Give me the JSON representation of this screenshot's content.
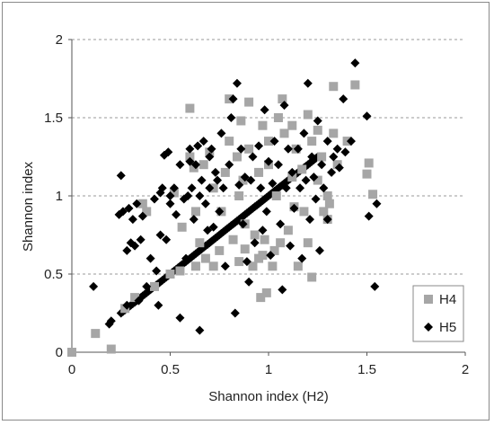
{
  "chart_data": {
    "type": "scatter",
    "title": "",
    "xlabel": "Shannon index (H2)",
    "ylabel": "Shannon index",
    "xlim": [
      0,
      2
    ],
    "ylim": [
      0,
      2
    ],
    "x_ticks": [
      "0",
      "0.5",
      "1",
      "1.5",
      "2"
    ],
    "y_ticks": [
      "0",
      "0.5",
      "1",
      "1.5",
      "2"
    ],
    "grid": "horizontal dashed",
    "legend_placement": "bottom-right",
    "series": [
      {
        "name": "H4",
        "marker": "square",
        "color": "#a6a6a6",
        "points": [
          [
            0.0,
            0.0
          ],
          [
            0.12,
            0.12
          ],
          [
            0.2,
            0.02
          ],
          [
            0.27,
            0.28
          ],
          [
            0.32,
            0.35
          ],
          [
            0.36,
            0.95
          ],
          [
            0.38,
            0.9
          ],
          [
            0.42,
            0.42
          ],
          [
            0.5,
            0.5
          ],
          [
            0.52,
            1.02
          ],
          [
            0.55,
            0.52
          ],
          [
            0.56,
            0.8
          ],
          [
            0.6,
            1.56
          ],
          [
            0.6,
            1.25
          ],
          [
            0.62,
            1.18
          ],
          [
            0.63,
            0.9
          ],
          [
            0.63,
            0.55
          ],
          [
            0.65,
            0.7
          ],
          [
            0.67,
            1.2
          ],
          [
            0.68,
            0.6
          ],
          [
            0.7,
            1.28
          ],
          [
            0.72,
            0.55
          ],
          [
            0.72,
            1.05
          ],
          [
            0.75,
            0.65
          ],
          [
            0.76,
            0.9
          ],
          [
            0.78,
            1.15
          ],
          [
            0.8,
            1.35
          ],
          [
            0.8,
            1.62
          ],
          [
            0.82,
            0.72
          ],
          [
            0.84,
            1.25
          ],
          [
            0.85,
            0.58
          ],
          [
            0.85,
            1.0
          ],
          [
            0.86,
            1.48
          ],
          [
            0.87,
            1.1
          ],
          [
            0.88,
            0.66
          ],
          [
            0.88,
            0.82
          ],
          [
            0.9,
            1.6
          ],
          [
            0.9,
            1.3
          ],
          [
            0.92,
            0.55
          ],
          [
            0.93,
            0.75
          ],
          [
            0.95,
            1.15
          ],
          [
            0.95,
            0.6
          ],
          [
            0.96,
            0.35
          ],
          [
            0.97,
            1.45
          ],
          [
            0.97,
            0.62
          ],
          [
            0.98,
            0.72
          ],
          [
            0.99,
            0.38
          ],
          [
            1.0,
            1.35
          ],
          [
            1.0,
            1.2
          ],
          [
            1.02,
            0.55
          ],
          [
            1.03,
            0.65
          ],
          [
            1.04,
            1.0
          ],
          [
            1.05,
            1.5
          ],
          [
            1.06,
            0.7
          ],
          [
            1.07,
            1.62
          ],
          [
            1.08,
            1.4
          ],
          [
            1.1,
            0.78
          ],
          [
            1.12,
            1.45
          ],
          [
            1.12,
            1.12
          ],
          [
            1.13,
            0.93
          ],
          [
            1.14,
            1.3
          ],
          [
            1.15,
            0.55
          ],
          [
            1.17,
            1.17
          ],
          [
            1.18,
            0.9
          ],
          [
            1.2,
            0.7
          ],
          [
            1.2,
            1.52
          ],
          [
            1.22,
            1.35
          ],
          [
            1.22,
            0.48
          ],
          [
            1.25,
            1.42
          ],
          [
            1.25,
            1.1
          ],
          [
            1.27,
            1.25
          ],
          [
            1.28,
            0.9
          ],
          [
            1.3,
            1.0
          ],
          [
            1.3,
            0.85
          ],
          [
            1.31,
            0.95
          ],
          [
            1.33,
            1.7
          ],
          [
            1.33,
            1.4
          ],
          [
            1.35,
            1.2
          ],
          [
            1.4,
            1.35
          ],
          [
            1.44,
            1.71
          ],
          [
            1.5,
            1.14
          ],
          [
            1.51,
            1.21
          ],
          [
            1.53,
            1.01
          ]
        ]
      },
      {
        "name": "H5",
        "marker": "diamond",
        "color": "#000000",
        "points": [
          [
            0.11,
            0.42
          ],
          [
            0.19,
            0.18
          ],
          [
            0.2,
            0.2
          ],
          [
            0.24,
            0.88
          ],
          [
            0.25,
            1.13
          ],
          [
            0.26,
            0.9
          ],
          [
            0.28,
            0.65
          ],
          [
            0.28,
            0.3
          ],
          [
            0.29,
            0.92
          ],
          [
            0.3,
            0.7
          ],
          [
            0.31,
            0.85
          ],
          [
            0.32,
            0.68
          ],
          [
            0.33,
            0.95
          ],
          [
            0.34,
            0.33
          ],
          [
            0.35,
            0.72
          ],
          [
            0.36,
            0.87
          ],
          [
            0.38,
            0.42
          ],
          [
            0.4,
            0.6
          ],
          [
            0.42,
            0.98
          ],
          [
            0.43,
            0.52
          ],
          [
            0.44,
            0.3
          ],
          [
            0.45,
            1.02
          ],
          [
            0.45,
            0.75
          ],
          [
            0.46,
            1.05
          ],
          [
            0.47,
            1.26
          ],
          [
            0.48,
            0.72
          ],
          [
            0.49,
            1.28
          ],
          [
            0.5,
            0.95
          ],
          [
            0.5,
            1.0
          ],
          [
            0.52,
            1.05
          ],
          [
            0.53,
            0.88
          ],
          [
            0.55,
            1.2
          ],
          [
            0.55,
            0.22
          ],
          [
            0.57,
            0.98
          ],
          [
            0.58,
            0.6
          ],
          [
            0.59,
            1.0
          ],
          [
            0.6,
            1.22
          ],
          [
            0.6,
            1.3
          ],
          [
            0.61,
            1.05
          ],
          [
            0.62,
            0.85
          ],
          [
            0.63,
            1.2
          ],
          [
            0.64,
            1.32
          ],
          [
            0.65,
            0.14
          ],
          [
            0.65,
            1.0
          ],
          [
            0.66,
            1.1
          ],
          [
            0.67,
            1.35
          ],
          [
            0.68,
            0.95
          ],
          [
            0.69,
            0.78
          ],
          [
            0.7,
            1.25
          ],
          [
            0.7,
            1.05
          ],
          [
            0.71,
            1.3
          ],
          [
            0.72,
            0.8
          ],
          [
            0.73,
            1.15
          ],
          [
            0.74,
            1.1
          ],
          [
            0.75,
            0.9
          ],
          [
            0.76,
            1.4
          ],
          [
            0.77,
            1.05
          ],
          [
            0.78,
            0.55
          ],
          [
            0.8,
            1.2
          ],
          [
            0.81,
            1.5
          ],
          [
            0.82,
            1.62
          ],
          [
            0.83,
            0.25
          ],
          [
            0.84,
            1.72
          ],
          [
            0.85,
            1.07
          ],
          [
            0.86,
            1.3
          ],
          [
            0.87,
            0.82
          ],
          [
            0.88,
            1.12
          ],
          [
            0.89,
            0.58
          ],
          [
            0.9,
            0.45
          ],
          [
            0.91,
            1.1
          ],
          [
            0.92,
            1.25
          ],
          [
            0.93,
            0.7
          ],
          [
            0.95,
            1.32
          ],
          [
            0.96,
            1.05
          ],
          [
            0.97,
            0.78
          ],
          [
            0.98,
            1.55
          ],
          [
            0.99,
            0.9
          ],
          [
            1.0,
            1.22
          ],
          [
            1.01,
            0.62
          ],
          [
            1.02,
            1.08
          ],
          [
            1.03,
            1.35
          ],
          [
            1.05,
            1.2
          ],
          [
            1.06,
            0.82
          ],
          [
            1.07,
            0.4
          ],
          [
            1.08,
            1.58
          ],
          [
            1.09,
            1.05
          ],
          [
            1.1,
            1.3
          ],
          [
            1.11,
            0.68
          ],
          [
            1.12,
            1.15
          ],
          [
            1.13,
            0.92
          ],
          [
            1.15,
            1.3
          ],
          [
            1.16,
            1.05
          ],
          [
            1.17,
            0.6
          ],
          [
            1.18,
            1.4
          ],
          [
            1.19,
            1.1
          ],
          [
            1.2,
            1.72
          ],
          [
            1.21,
            0.85
          ],
          [
            1.22,
            1.25
          ],
          [
            1.23,
            1.12
          ],
          [
            1.24,
            0.98
          ],
          [
            1.25,
            1.48
          ],
          [
            1.26,
            0.65
          ],
          [
            1.27,
            1.2
          ],
          [
            1.28,
            1.05
          ],
          [
            1.3,
            1.35
          ],
          [
            1.3,
            0.85
          ],
          [
            1.32,
            1.15
          ],
          [
            1.33,
            1.25
          ],
          [
            1.35,
            1.3
          ],
          [
            1.36,
            1.18
          ],
          [
            1.38,
            1.62
          ],
          [
            1.39,
            1.28
          ],
          [
            1.42,
            1.35
          ],
          [
            1.44,
            1.85
          ],
          [
            1.5,
            1.51
          ],
          [
            1.51,
            0.87
          ],
          [
            1.54,
            0.42
          ],
          [
            1.55,
            0.95
          ]
        ]
      }
    ]
  }
}
